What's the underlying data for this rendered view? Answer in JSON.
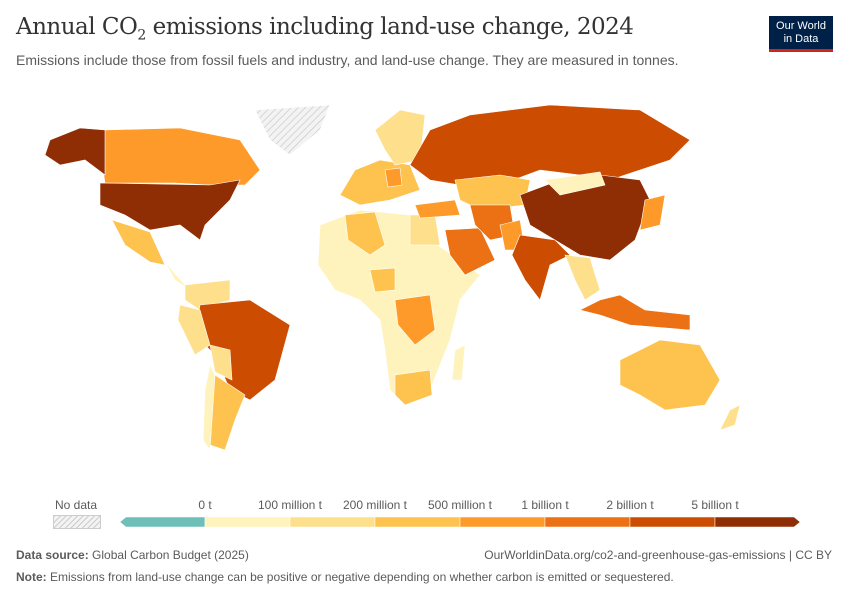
{
  "header": {
    "title_pre": "Annual CO",
    "title_sub": "2",
    "title_post": " emissions including land-use change, 2024",
    "subtitle": "Emissions include those from fossil fuels and industry, and land-use change. They are measured in tonnes.",
    "logo_line1": "Our World",
    "logo_line2": "in Data"
  },
  "chart_data": {
    "type": "choropleth-map",
    "year": 2024,
    "legend": {
      "no_data_label": "No data",
      "no_data_color": "#e5e5e5",
      "bins": [
        {
          "label": "",
          "color": "#6fbfb9"
        },
        {
          "label": "0 t",
          "color": "#fff3bd"
        },
        {
          "label": "100 million t",
          "color": "#fedf8b"
        },
        {
          "label": "200 million t",
          "color": "#fec34e"
        },
        {
          "label": "500 million t",
          "color": "#fd9a2a"
        },
        {
          "label": "1 billion t",
          "color": "#ec7014"
        },
        {
          "label": "2 billion t",
          "color": "#cc4c02"
        },
        {
          "label": "5 billion t",
          "color": "#8f2d04"
        }
      ]
    },
    "regions": [
      {
        "name": "Canada",
        "bin": 4
      },
      {
        "name": "Alaska (USA)",
        "bin": 7
      },
      {
        "name": "United States",
        "bin": 7
      },
      {
        "name": "Greenland",
        "bin": -1
      },
      {
        "name": "Mexico",
        "bin": 3
      },
      {
        "name": "Central America",
        "bin": 1
      },
      {
        "name": "Colombia/Venezuela",
        "bin": 2
      },
      {
        "name": "Brazil",
        "bin": 6
      },
      {
        "name": "Peru",
        "bin": 2
      },
      {
        "name": "Bolivia",
        "bin": 2
      },
      {
        "name": "Argentina",
        "bin": 3
      },
      {
        "name": "Chile",
        "bin": 1
      },
      {
        "name": "Africa (other)",
        "bin": 1
      },
      {
        "name": "DR Congo",
        "bin": 4
      },
      {
        "name": "Egypt",
        "bin": 2
      },
      {
        "name": "Algeria",
        "bin": 3
      },
      {
        "name": "South Africa",
        "bin": 3
      },
      {
        "name": "Nigeria",
        "bin": 3
      },
      {
        "name": "Madagascar",
        "bin": 1
      },
      {
        "name": "Western Europe",
        "bin": 3
      },
      {
        "name": "Scandinavia",
        "bin": 2
      },
      {
        "name": "Germany",
        "bin": 4
      },
      {
        "name": "Turkey",
        "bin": 4
      },
      {
        "name": "Russia",
        "bin": 6
      },
      {
        "name": "Kazakhstan",
        "bin": 3
      },
      {
        "name": "Saudi Arabia",
        "bin": 5
      },
      {
        "name": "Iran",
        "bin": 5
      },
      {
        "name": "Pakistan",
        "bin": 4
      },
      {
        "name": "China",
        "bin": 7
      },
      {
        "name": "Mongolia",
        "bin": 1
      },
      {
        "name": "India",
        "bin": 6
      },
      {
        "name": "Southeast Asia",
        "bin": 2
      },
      {
        "name": "Japan",
        "bin": 4
      },
      {
        "name": "Indonesia",
        "bin": 5
      },
      {
        "name": "Australia",
        "bin": 3
      },
      {
        "name": "New Zealand",
        "bin": 2
      }
    ]
  },
  "footer": {
    "source_label": "Data source:",
    "source": "Global Carbon Budget (2025)",
    "url": "OurWorldinData.org/co2-and-greenhouse-gas-emissions | CC BY",
    "note_label": "Note:",
    "note": "Emissions from land-use change can be positive or negative depending on whether carbon is emitted or sequestered."
  }
}
